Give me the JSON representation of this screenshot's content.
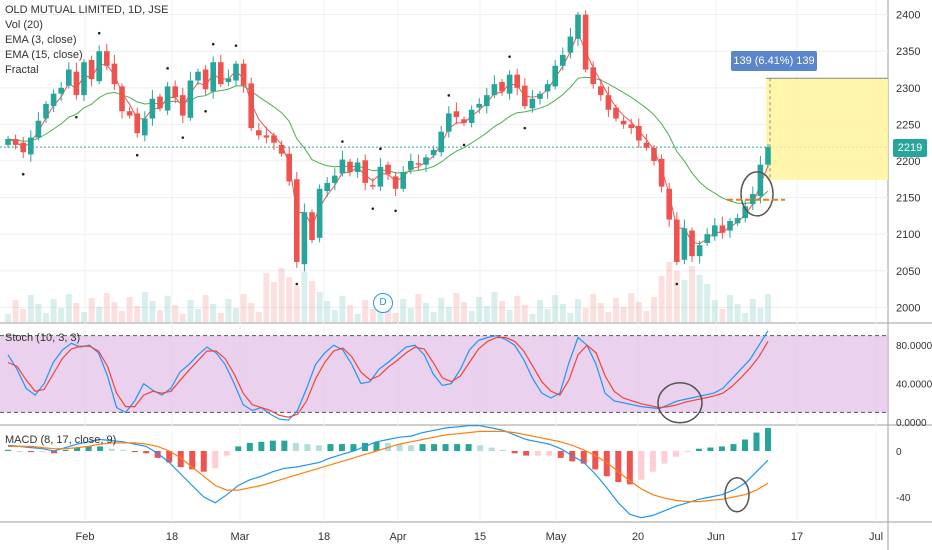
{
  "header": {
    "title": "OLD MUTUAL LIMITED, 1D, JSE",
    "indicators": [
      "Vol (20)",
      "EMA (3, close)",
      "EMA (15, close)",
      "Fractal"
    ]
  },
  "measure_label": "139 (6.41%) 139",
  "last_price_label": "2219",
  "event_marker": "D",
  "panes": {
    "stoch": {
      "label": "Stoch (10, 3, 3)"
    },
    "macd": {
      "label": "MACD (8, 17, close, 9)"
    }
  },
  "colors": {
    "up": "#26a69a",
    "down": "#ef5350",
    "ema_fast": "#ef5350",
    "ema_slow": "#4caf50",
    "stoch_k": "#2196f3",
    "stoch_d": "#f44336",
    "stoch_band": "#e1bee7",
    "macd_line": "#2196f3",
    "signal_line": "#ff7f0e",
    "measure_fill": "#fff59d"
  },
  "chart_data": [
    {
      "type": "candlestick",
      "title": "OLD MUTUAL LIMITED, 1D, JSE",
      "x_tick_labels": [
        "Feb",
        "18",
        "Mar",
        "18",
        "Apr",
        "15",
        "May",
        "20",
        "Jun",
        "17",
        "Jul"
      ],
      "y_tick_labels": [
        "2400",
        "2350",
        "2300",
        "2250",
        "2200",
        "2150",
        "2100",
        "2050",
        "2000"
      ],
      "ylim": [
        1980,
        2420
      ],
      "last_price": 2219,
      "close": [
        2230,
        2222,
        2212,
        2232,
        2255,
        2278,
        2292,
        2300,
        2325,
        2290,
        2335,
        2312,
        2350,
        2330,
        2305,
        2268,
        2262,
        2238,
        2258,
        2285,
        2272,
        2302,
        2287,
        2262,
        2310,
        2322,
        2298,
        2335,
        2305,
        2313,
        2333,
        2303,
        2245,
        2235,
        2232,
        2225,
        2210,
        2172,
        2062,
        2130,
        2092,
        2162,
        2170,
        2180,
        2202,
        2185,
        2198,
        2170,
        2165,
        2192,
        2182,
        2162,
        2185,
        2200,
        2195,
        2205,
        2215,
        2240,
        2265,
        2260,
        2252,
        2270,
        2278,
        2290,
        2305,
        2295,
        2318,
        2300,
        2275,
        2285,
        2292,
        2305,
        2330,
        2345,
        2370,
        2400,
        2325,
        2305,
        2290,
        2270,
        2258,
        2250,
        2245,
        2228,
        2218,
        2200,
        2165,
        2120,
        2062,
        2108,
        2070,
        2085,
        2100,
        2112,
        2102,
        2118,
        2122,
        2138,
        2155,
        2195,
        2219
      ],
      "volume_trend": "low with spikes mid-March and late May"
    },
    {
      "type": "line",
      "title": "Stoch (10, 3, 3)",
      "y_tick_labels": [
        "80.0000",
        "40.0000",
        "0.0000"
      ],
      "ylim": [
        0,
        100
      ],
      "bands": [
        20,
        80
      ],
      "series": [
        {
          "name": "%K",
          "values": [
            70,
            55,
            35,
            28,
            40,
            62,
            75,
            82,
            78,
            80,
            72,
            48,
            15,
            10,
            22,
            40,
            33,
            28,
            35,
            52,
            60,
            70,
            78,
            72,
            60,
            40,
            18,
            12,
            15,
            8,
            3,
            2,
            12,
            35,
            60,
            72,
            80,
            75,
            60,
            40,
            42,
            55,
            62,
            70,
            78,
            80,
            70,
            50,
            38,
            40,
            55,
            75,
            85,
            88,
            90,
            86,
            80,
            65,
            45,
            30,
            25,
            30,
            62,
            88,
            80,
            60,
            30,
            22,
            20,
            18,
            16,
            15,
            14,
            18,
            22,
            24,
            26,
            28,
            30,
            35,
            45,
            55,
            65,
            80,
            95
          ]
        },
        {
          "name": "%D",
          "values": [
            62,
            58,
            44,
            32,
            34,
            50,
            66,
            76,
            79,
            79,
            74,
            58,
            30,
            16,
            16,
            28,
            32,
            30,
            32,
            43,
            54,
            64,
            74,
            74,
            66,
            50,
            30,
            18,
            15,
            12,
            7,
            5,
            8,
            22,
            45,
            62,
            74,
            77,
            68,
            52,
            44,
            48,
            57,
            64,
            72,
            78,
            76,
            62,
            46,
            42,
            48,
            62,
            76,
            84,
            88,
            88,
            84,
            74,
            58,
            42,
            32,
            28,
            44,
            70,
            80,
            72,
            48,
            32,
            25,
            22,
            19,
            17,
            15,
            16,
            18,
            21,
            23,
            25,
            27,
            30,
            37,
            46,
            56,
            68,
            84
          ]
        }
      ]
    },
    {
      "type": "bar+line",
      "title": "MACD (8, 17, close, 9)",
      "y_tick_labels": [
        "0",
        "-40"
      ],
      "ylim": [
        -60,
        20
      ],
      "series": [
        {
          "name": "MACD",
          "values": [
            5,
            4,
            3,
            2,
            0,
            3,
            6,
            8,
            10,
            9,
            8,
            6,
            4,
            -2,
            -10,
            -20,
            -30,
            -40,
            -45,
            -38,
            -30,
            -25,
            -22,
            -18,
            -15,
            -14,
            -12,
            -10,
            -6,
            -3,
            0,
            4,
            8,
            10,
            12,
            13,
            16,
            18,
            20,
            21,
            22,
            22,
            20,
            18,
            14,
            10,
            8,
            6,
            2,
            -4,
            -10,
            -20,
            -32,
            -45,
            -55,
            -58,
            -56,
            -52,
            -48,
            -45,
            -42,
            -40,
            -38,
            -34,
            -28,
            -18,
            -8
          ]
        },
        {
          "name": "Signal",
          "values": [
            4,
            4,
            4,
            3,
            2,
            2,
            3,
            4,
            6,
            7,
            7,
            7,
            6,
            4,
            0,
            -6,
            -14,
            -22,
            -30,
            -34,
            -34,
            -32,
            -30,
            -27,
            -24,
            -21,
            -18,
            -15,
            -12,
            -9,
            -6,
            -3,
            0,
            3,
            6,
            8,
            10,
            12,
            14,
            15,
            16,
            17,
            17,
            17,
            16,
            14,
            12,
            10,
            8,
            5,
            1,
            -4,
            -10,
            -18,
            -26,
            -33,
            -38,
            -41,
            -43,
            -44,
            -44,
            -43,
            -42,
            -40,
            -38,
            -34,
            -28
          ]
        },
        {
          "name": "Histogram",
          "values": [
            1,
            0,
            -1,
            -1,
            -2,
            1,
            3,
            4,
            4,
            2,
            1,
            -1,
            -2,
            -6,
            -10,
            -14,
            -16,
            -18,
            -15,
            -4,
            4,
            7,
            8,
            9,
            9,
            7,
            6,
            5,
            6,
            6,
            6,
            7,
            8,
            7,
            6,
            5,
            6,
            6,
            6,
            6,
            6,
            5,
            3,
            1,
            -2,
            -4,
            -4,
            -4,
            -6,
            -9,
            -11,
            -16,
            -22,
            -27,
            -29,
            -25,
            -18,
            -11,
            -5,
            -1,
            2,
            3,
            4,
            6,
            10,
            16,
            20
          ]
        }
      ]
    }
  ]
}
